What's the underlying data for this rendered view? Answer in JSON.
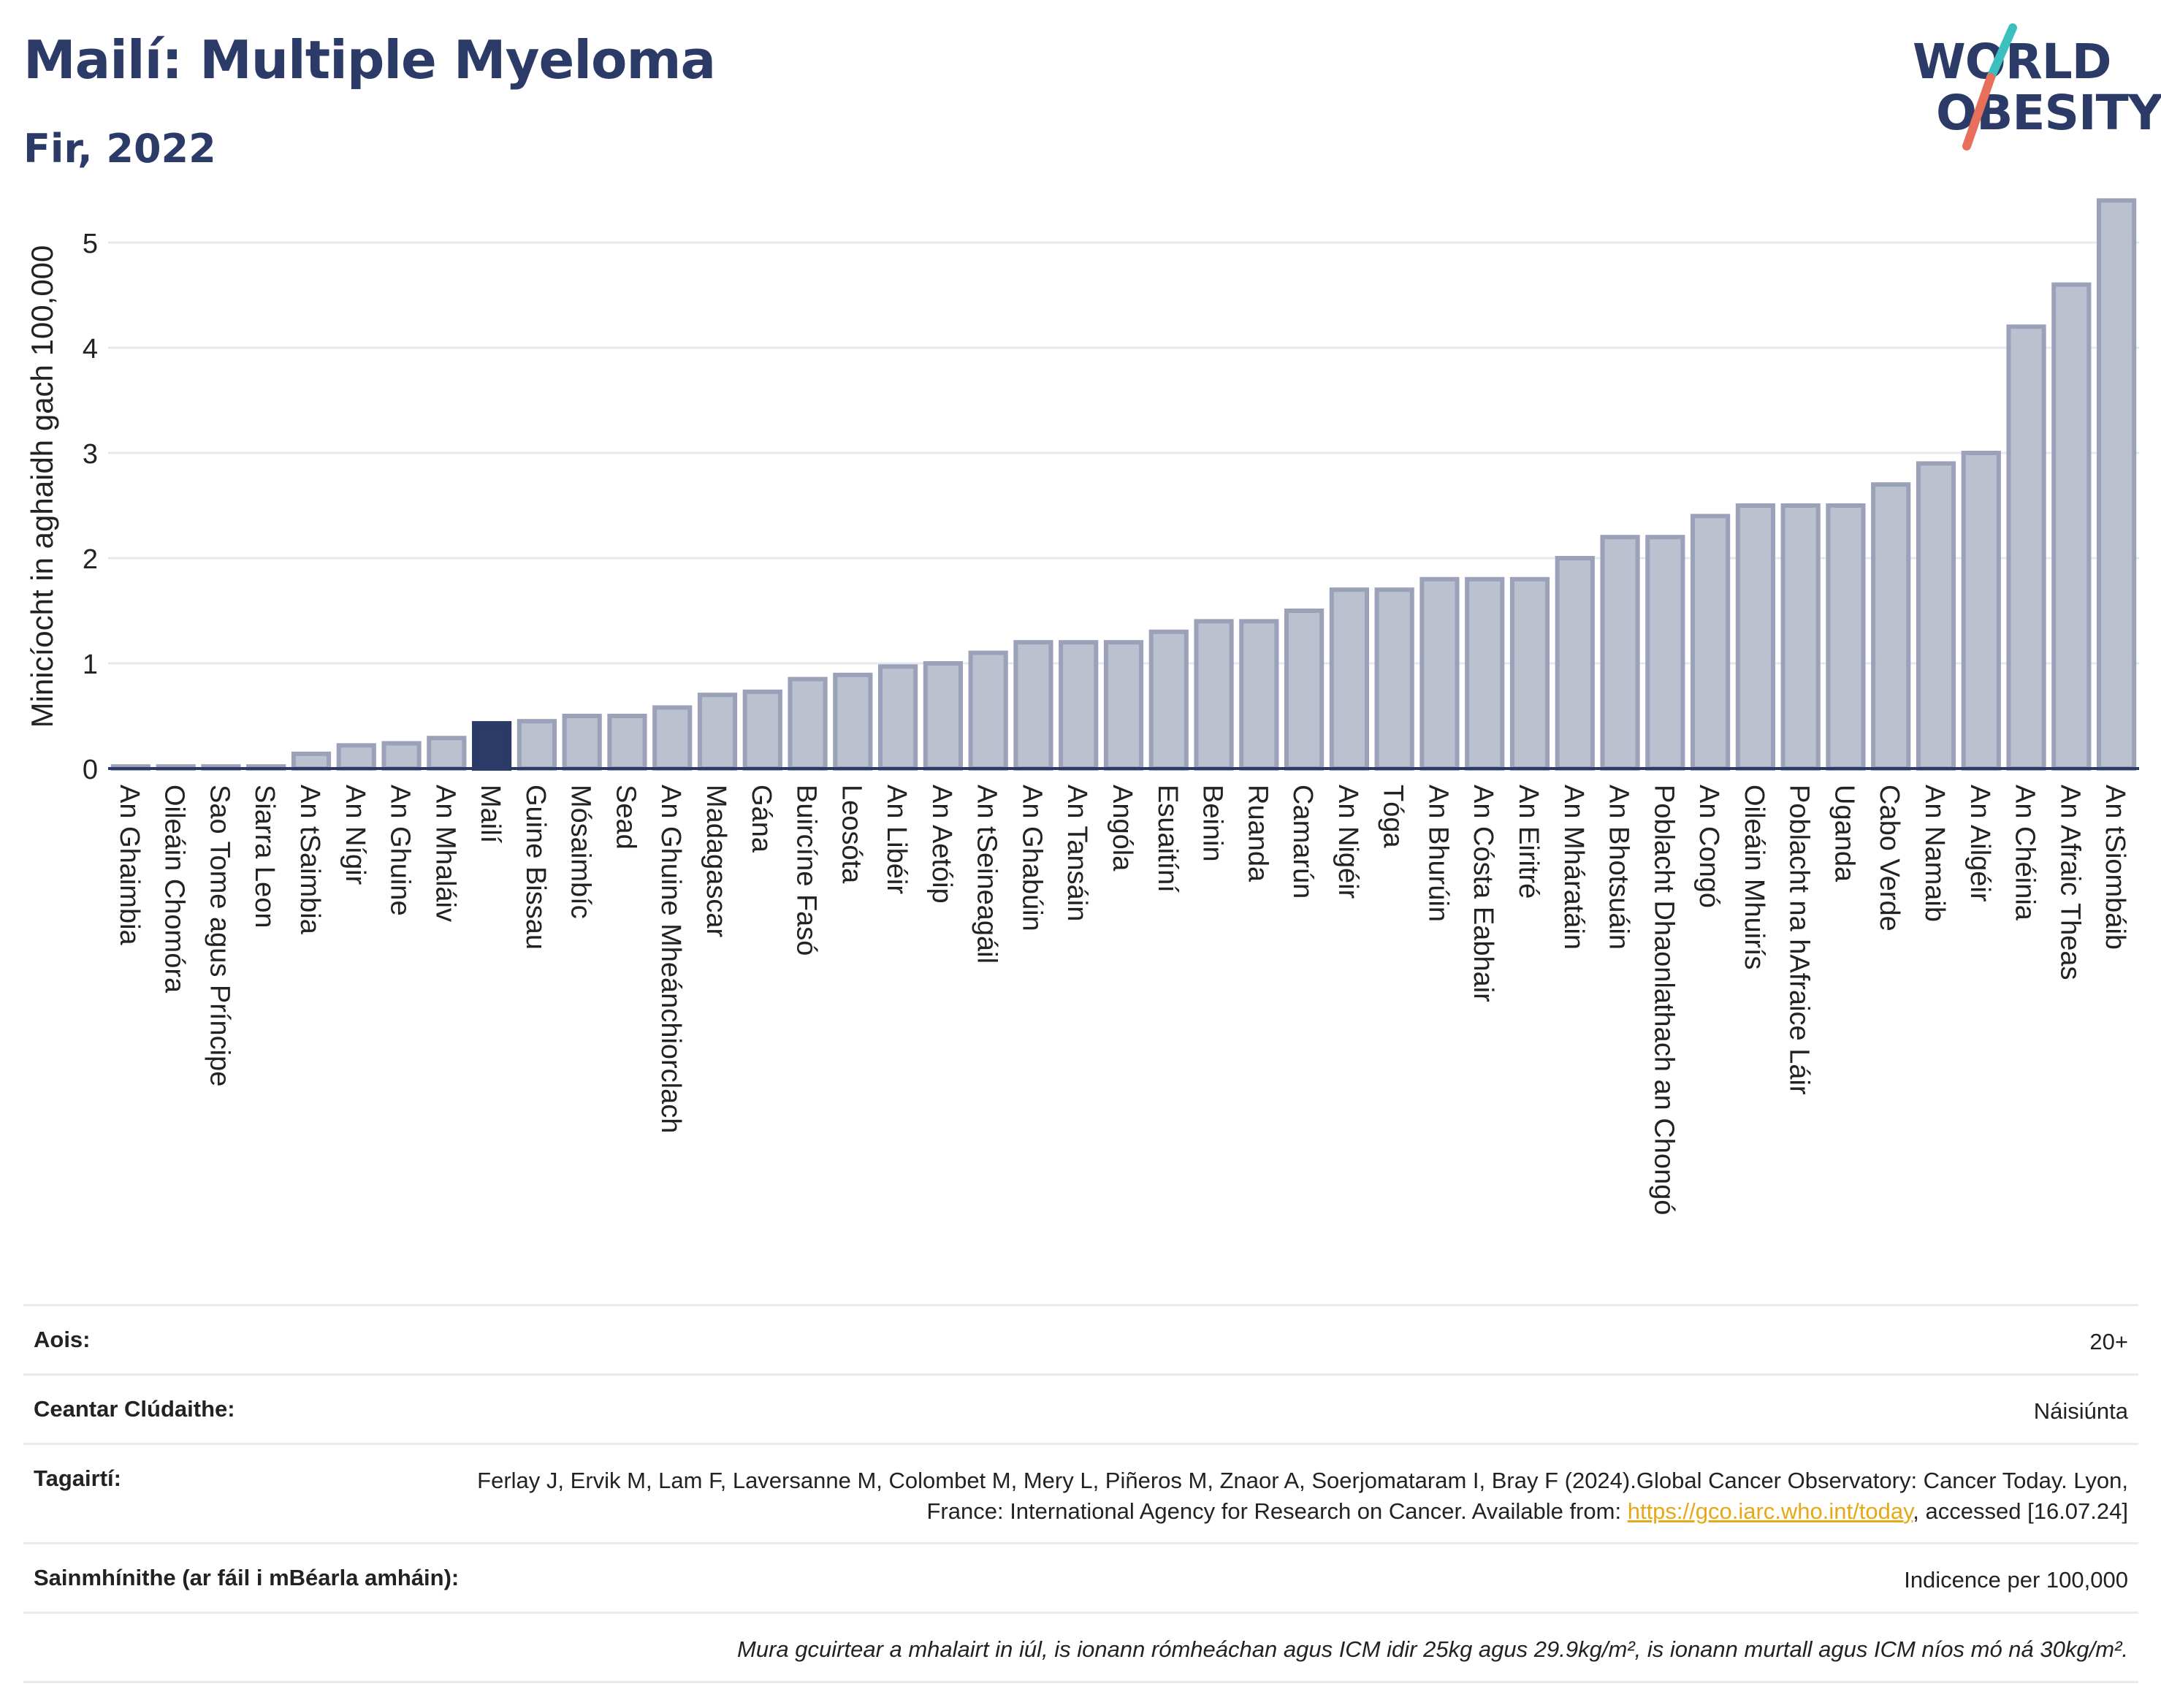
{
  "header": {
    "title": "Mailí: Multiple Myeloma",
    "subtitle": "Fir, 2022"
  },
  "logo": {
    "line1": "WORLD",
    "line2": "OBESITY",
    "slash_colors": [
      "#3bbfbf",
      "#e8705a"
    ]
  },
  "colors": {
    "highlight_bar": "#2b3a67",
    "bar_fill": "#bcc1d0",
    "bar_stroke": "#9aa1b9",
    "axis": "#2b3a67",
    "grid": "#e6e9ef",
    "text": "#222222"
  },
  "chart_data": {
    "type": "bar",
    "title": "",
    "xlabel": "",
    "ylabel": "Minicíocht in aghaidh gach 100,000",
    "ylim": [
      0,
      5.5
    ],
    "yticks": [
      0,
      1,
      2,
      3,
      4,
      5
    ],
    "grid": true,
    "highlight": "Mailí",
    "categories": [
      "An Ghaimbia",
      "Oileáin Chomóra",
      "Sao Tome agus Príncipe",
      "Siarra Leon",
      "An tSaimbia",
      "An Nígir",
      "An Ghuine",
      "An Mhaláiv",
      "Mailí",
      "Guine Bissau",
      "Mósaimbíc",
      "Sead",
      "An Ghuine Mheánchiorclach",
      "Madagascar",
      "Gána",
      "Buircíne Fasó",
      "Leosóta",
      "An Libéir",
      "An Aetóip",
      "An tSeineagáil",
      "An Ghabúin",
      "An Tansáin",
      "Angóla",
      "Esuaitíní",
      "Beinin",
      "Ruanda",
      "Camarún",
      "An Nigéir",
      "Tóga",
      "An Bhurúin",
      "An Cósta Eabhair",
      "An Eiritré",
      "An Mháratáin",
      "An Bhotsuáin",
      "Poblacht Dhaonlathach an Chongó",
      "An Congó",
      "Oileáin Mhuirís",
      "Poblacht na hAfraice Láir",
      "Uganda",
      "Cabo Verde",
      "An Namaib",
      "An Ailgéir",
      "An Chéinia",
      "An Afraic Theas",
      "An tSiombáib"
    ],
    "values": [
      0.02,
      0.02,
      0.02,
      0.02,
      0.14,
      0.22,
      0.24,
      0.29,
      0.43,
      0.45,
      0.5,
      0.5,
      0.58,
      0.7,
      0.73,
      0.85,
      0.89,
      0.97,
      1.0,
      1.1,
      1.2,
      1.2,
      1.2,
      1.3,
      1.4,
      1.4,
      1.5,
      1.7,
      1.7,
      1.8,
      1.8,
      1.8,
      2.0,
      2.2,
      2.2,
      2.4,
      2.5,
      2.5,
      2.5,
      2.7,
      2.9,
      3.0,
      4.2,
      4.6,
      5.4
    ]
  },
  "info": {
    "rows": [
      {
        "label": "Aois:",
        "value": "20+"
      },
      {
        "label": "Ceantar Clúdaithe:",
        "value": "Náisiúnta"
      },
      {
        "label": "Tagairtí:",
        "value_pre": "Ferlay J, Ervik M, Lam F, Laversanne M, Colombet M, Mery L, Piñeros M, Znaor A, Soerjomataram I, Bray F (2024).Global Cancer Observatory: Cancer Today. Lyon, France: International Agency for Research on Cancer. Available from: ",
        "link": "https://gco.iarc.who.int/today",
        "value_post": ", accessed [16.07.24]"
      },
      {
        "label": "Sainmhínithe (ar fáil i mBéarla amháin):",
        "value": "Indicence per 100,000"
      }
    ],
    "note": "Mura gcuirtear a mhalairt in iúl, is ionann rómheáchan agus ICM idir 25kg agus 29.9kg/m², is ionann murtall agus ICM níos mó ná 30kg/m²."
  }
}
